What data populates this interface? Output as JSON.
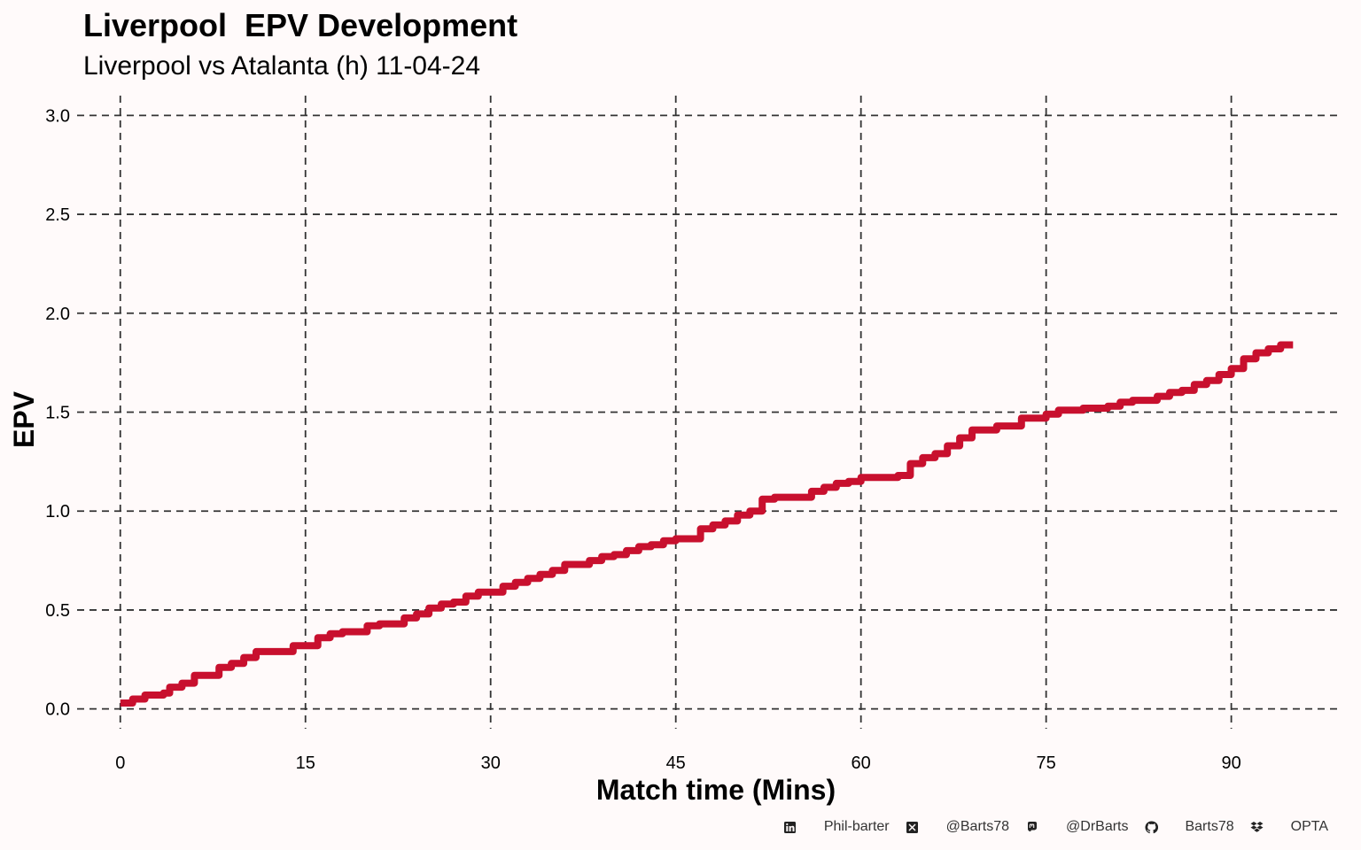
{
  "header": {
    "title": "Liverpool  EPV Development",
    "subtitle": "Liverpool vs Atalanta (h) 11-04-24"
  },
  "chart_data": {
    "type": "line",
    "step": true,
    "title": "Liverpool  EPV Development",
    "subtitle": "Liverpool vs Atalanta (h) 11-04-24",
    "xlabel": "Match time (Mins)",
    "ylabel": "EPV",
    "xlim": [
      -3.5,
      99
    ],
    "ylim": [
      -0.1,
      3.1
    ],
    "xticks": [
      0,
      15,
      30,
      45,
      60,
      75,
      90
    ],
    "yticks": [
      0.0,
      0.5,
      1.0,
      1.5,
      2.0,
      2.5,
      3.0
    ],
    "ytick_labels": [
      "0.0",
      "0.5",
      "1.0",
      "1.5",
      "2.0",
      "2.5",
      "3.0"
    ],
    "grid": true,
    "series": [
      {
        "name": "Liverpool",
        "color": "#c8102e",
        "x": [
          0,
          1,
          2,
          3.5,
          4,
          5,
          6,
          8,
          9,
          10,
          11,
          14,
          16,
          17,
          18,
          20,
          21,
          23,
          24,
          25,
          26,
          27,
          28,
          29,
          31,
          32,
          33,
          34,
          35,
          36,
          38,
          39,
          40,
          41,
          42,
          43,
          44,
          45,
          47,
          48,
          49,
          50,
          51,
          52,
          53,
          56,
          57,
          58,
          59,
          60,
          63,
          64,
          65,
          66,
          67,
          68,
          69,
          71,
          73,
          75,
          76,
          78,
          80,
          81,
          82,
          84,
          85,
          86,
          87,
          88,
          89,
          90,
          91,
          92,
          93,
          94,
          95
        ],
        "y": [
          0.03,
          0.05,
          0.07,
          0.08,
          0.11,
          0.13,
          0.17,
          0.21,
          0.23,
          0.26,
          0.29,
          0.32,
          0.36,
          0.38,
          0.39,
          0.42,
          0.43,
          0.46,
          0.48,
          0.51,
          0.53,
          0.54,
          0.57,
          0.59,
          0.62,
          0.64,
          0.66,
          0.68,
          0.7,
          0.73,
          0.75,
          0.77,
          0.78,
          0.8,
          0.82,
          0.83,
          0.85,
          0.86,
          0.91,
          0.93,
          0.95,
          0.98,
          1.0,
          1.06,
          1.07,
          1.1,
          1.12,
          1.14,
          1.15,
          1.17,
          1.18,
          1.24,
          1.27,
          1.29,
          1.33,
          1.37,
          1.41,
          1.43,
          1.47,
          1.49,
          1.51,
          1.52,
          1.53,
          1.55,
          1.56,
          1.58,
          1.6,
          1.61,
          1.64,
          1.66,
          1.69,
          1.72,
          1.77,
          1.8,
          1.82,
          1.84,
          1.84
        ]
      }
    ]
  },
  "footer": {
    "linkedin_icon": "linkedin-icon",
    "linkedin": "Phil-barter",
    "x_icon": "x-twitter-icon",
    "x": "@Barts78",
    "mastodon_icon": "mastodon-icon",
    "mastodon": "@DrBarts",
    "github_icon": "github-icon",
    "github": "Barts78",
    "dropbox_icon": "dropbox-icon",
    "source": "OPTA"
  }
}
